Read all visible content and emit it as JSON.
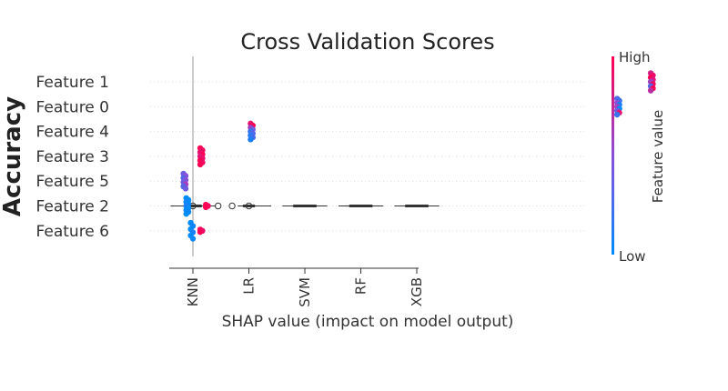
{
  "chart_data": {
    "type": "scatter",
    "title": "Cross Validation Scores",
    "ylabel": "Accuracy",
    "xlabel": "SHAP value (impact on model output)",
    "x_ticks": [
      "KNN",
      "LR",
      "SVM",
      "RF",
      "XGB"
    ],
    "features": [
      "Feature 1",
      "Feature 0",
      "Feature 4",
      "Feature 3",
      "Feature 5",
      "Feature 2",
      "Feature 6"
    ],
    "colorbar": {
      "label": "Feature value",
      "high": "High",
      "low": "Low"
    },
    "colors": {
      "low": "#008bfb",
      "mid": "#8a4fd8",
      "high": "#ff0052",
      "zero_line": "#999999",
      "grid": "#dddddd",
      "box": "#333333"
    },
    "clusters": [
      {
        "feature": "Feature 1",
        "x": 8.2,
        "spread": 0.35,
        "levels": [
          0.8,
          0.9,
          1.0,
          0.85,
          0.6,
          0.95,
          0.3,
          1.0,
          0.7
        ]
      },
      {
        "feature": "Feature 0",
        "x": 7.6,
        "spread": 0.32,
        "levels": [
          0.3,
          0.2,
          0.5,
          0.1,
          0.6,
          0.0,
          0.4,
          0.9,
          0.2
        ]
      },
      {
        "feature": "Feature 4",
        "x": 1.05,
        "spread": 0.32,
        "levels": [
          0.9,
          1.0,
          0.6,
          0.4,
          0.2,
          0.3,
          0.15,
          0.25,
          0.1
        ]
      },
      {
        "feature": "Feature 3",
        "x": 0.15,
        "spread": 0.33,
        "levels": [
          1.0,
          0.95,
          0.9,
          1.0,
          0.85,
          0.9,
          1.0,
          0.95,
          1.0
        ]
      },
      {
        "feature": "Feature 5",
        "x": -0.15,
        "spread": 0.3,
        "levels": [
          0.4,
          0.5,
          0.3,
          0.5,
          0.4,
          0.6,
          0.3,
          0.4
        ]
      },
      {
        "feature": "Feature 2",
        "x": -0.1,
        "spread": 0.32,
        "levels": [
          0.0,
          0.0,
          0.05,
          0.0,
          0.1,
          0.0,
          0.0,
          0.05,
          0.0
        ]
      },
      {
        "feature": "Feature 2",
        "x": 0.25,
        "spread": 0.05,
        "levels": [
          1.0,
          0.95,
          1.0
        ]
      },
      {
        "feature": "Feature 6",
        "x": -0.02,
        "spread": 0.32,
        "levels": [
          0.0,
          0.05,
          0.0,
          0.1,
          0.0,
          0.05
        ]
      },
      {
        "feature": "Feature 6",
        "x": 0.15,
        "spread": 0.05,
        "levels": [
          1.0,
          0.9,
          1.0
        ]
      }
    ],
    "boxes": [
      {
        "category": "KNN",
        "row": "Feature 2",
        "min": -0.4,
        "q1": -0.1,
        "median": 0.0,
        "q3": 0.15,
        "max": 0.4,
        "outliers": [
          0.0,
          0.45
        ]
      },
      {
        "category": "LR",
        "row": "Feature 2",
        "min": 0.8,
        "q1": 0.9,
        "median": 1.0,
        "q3": 1.1,
        "max": 1.4,
        "outliers": [
          0.7,
          1.0
        ]
      },
      {
        "category": "SVM",
        "row": "Feature 2",
        "min": 1.6,
        "q1": 1.8,
        "median": 2.0,
        "q3": 2.2,
        "max": 2.4,
        "outliers": []
      },
      {
        "category": "RF",
        "row": "Feature 2",
        "min": 2.6,
        "q1": 2.8,
        "median": 3.0,
        "q3": 3.2,
        "max": 3.4,
        "outliers": []
      },
      {
        "category": "XGB",
        "row": "Feature 2",
        "min": 3.6,
        "q1": 3.8,
        "median": 4.0,
        "q3": 4.2,
        "max": 4.4,
        "outliers": []
      }
    ]
  }
}
